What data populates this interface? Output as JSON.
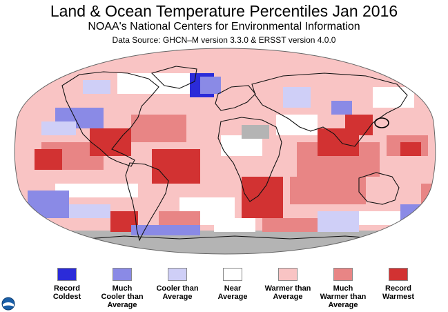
{
  "header": {
    "title": "Land & Ocean Temperature Percentiles Jan 2016",
    "subtitle": "NOAA's National Centers for Environmental Information",
    "source": "Data Source: GHCN–M version 3.3.0 & ERSST version 4.0.0"
  },
  "colors": {
    "record_coldest": "#2b2bd9",
    "much_cooler": "#8a8ae6",
    "cooler": "#cfcff7",
    "near": "#ffffff",
    "warmer": "#f9c4c4",
    "much_warmer": "#e88585",
    "record_warmest": "#d23232",
    "missing": "#b4b4b4"
  },
  "legend": [
    {
      "label": "Record\nColdest",
      "color_key": "record_coldest"
    },
    {
      "label": "Much\nCooler than\nAverage",
      "color_key": "much_cooler"
    },
    {
      "label": "Cooler than\nAverage",
      "color_key": "cooler"
    },
    {
      "label": "Near\nAverage",
      "color_key": "near"
    },
    {
      "label": "Warmer than\nAverage",
      "color_key": "warmer"
    },
    {
      "label": "Much\nWarmer than\nAverage",
      "color_key": "much_warmer"
    },
    {
      "label": "Record\nWarmest",
      "color_key": "record_warmest"
    }
  ]
}
